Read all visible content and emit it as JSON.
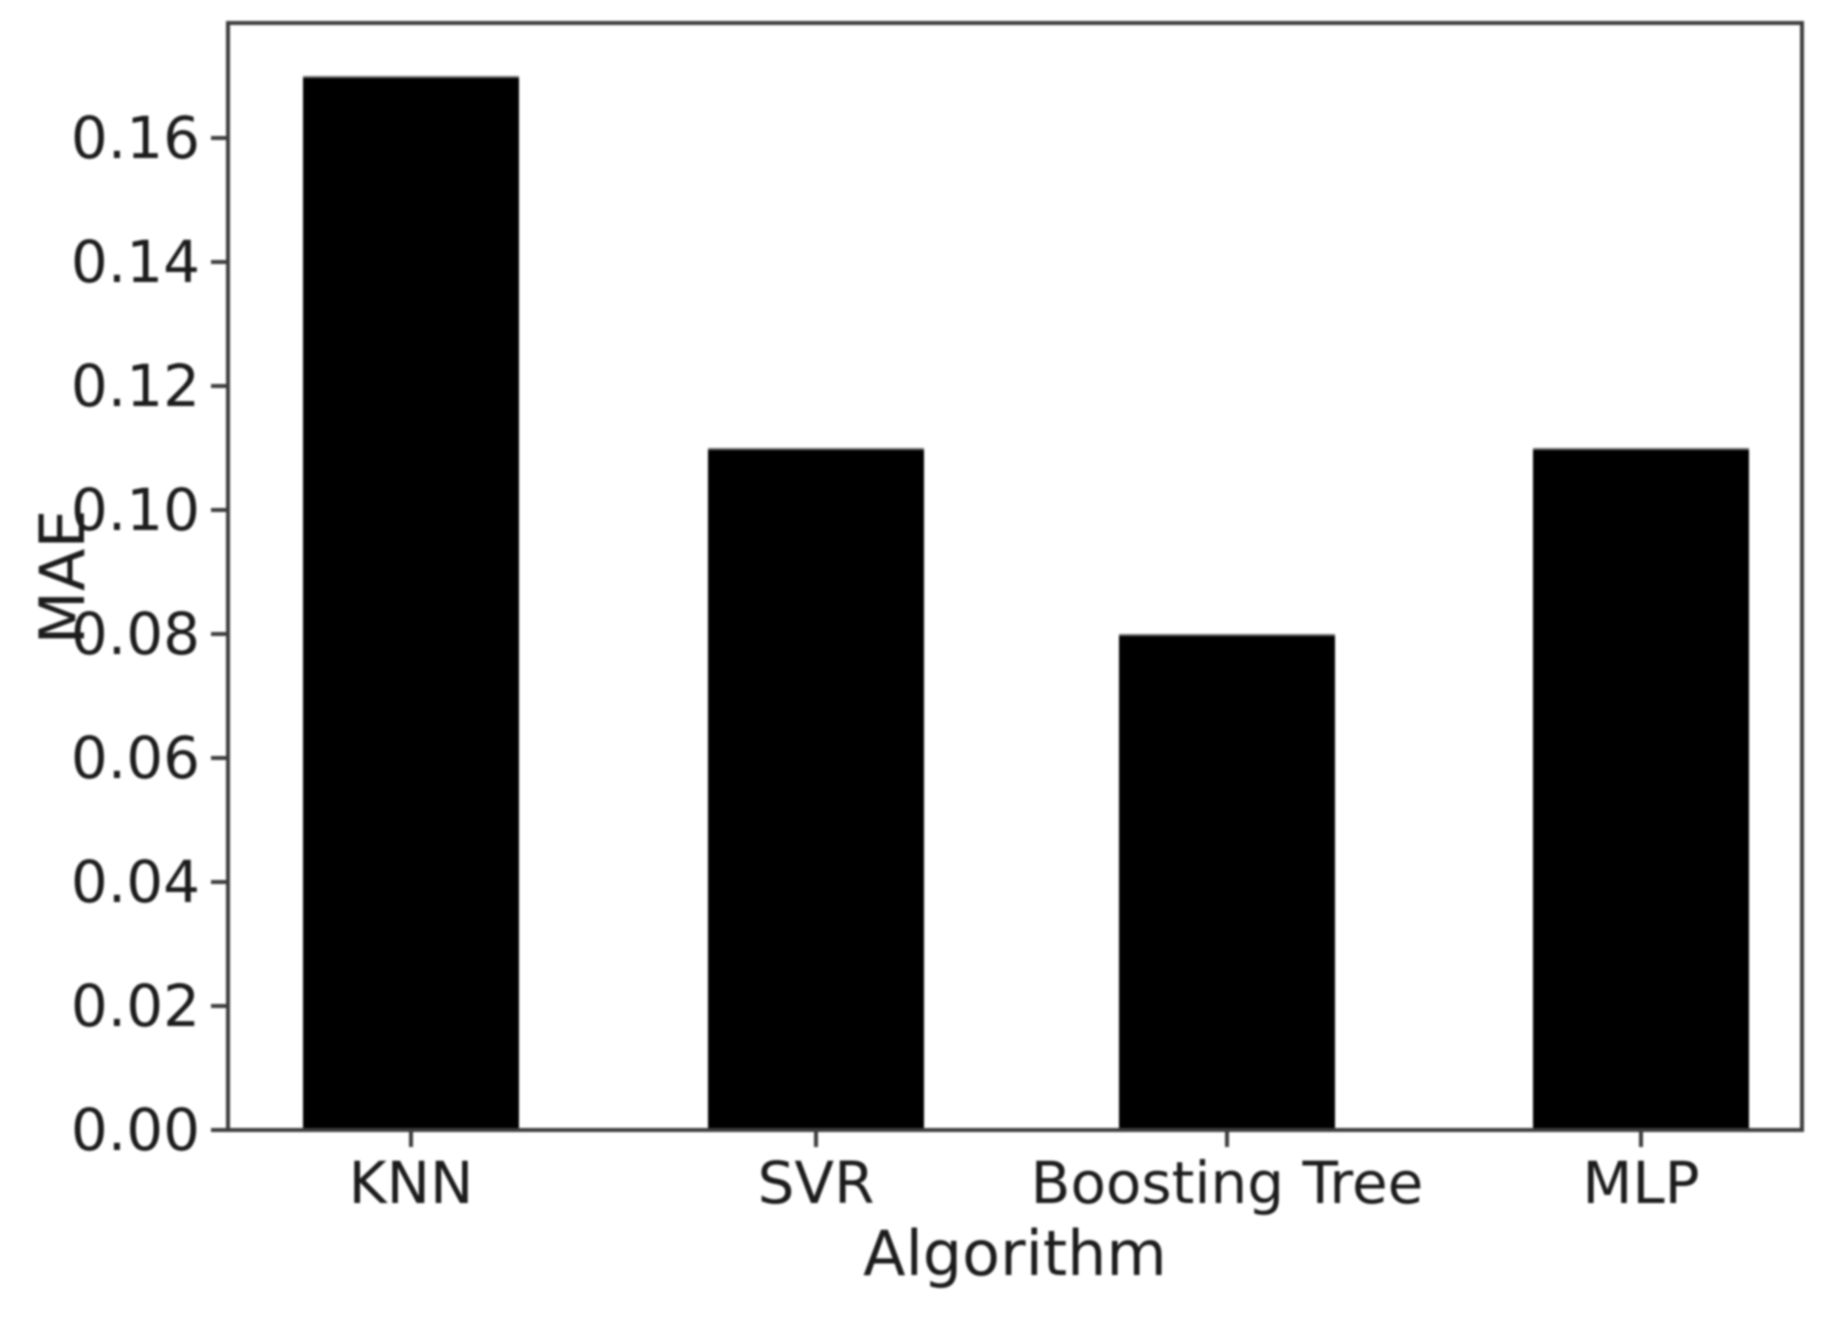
{
  "figure": {
    "background_color": "#ffffff",
    "bar_color": "#000000",
    "axis_color": "#3d3d3d",
    "text_color": "#1c1c1c"
  },
  "chart_data": {
    "type": "bar",
    "title": "",
    "xlabel": "Algorithm",
    "ylabel": "MAE",
    "categories": [
      "KNN",
      "SVR",
      "Boosting Tree",
      "MLP"
    ],
    "values": [
      0.17,
      0.11,
      0.08,
      0.11
    ],
    "ylim": [
      0,
      0.1785
    ],
    "yticks": [
      0.0,
      0.02,
      0.04,
      0.06,
      0.08,
      0.1,
      0.12,
      0.14,
      0.16
    ],
    "ytick_labels": [
      "0.00",
      "0.02",
      "0.04",
      "0.06",
      "0.08",
      "0.10",
      "0.12",
      "0.14",
      "0.16"
    ],
    "grid": false,
    "legend": null,
    "bar_color": "#000000"
  }
}
